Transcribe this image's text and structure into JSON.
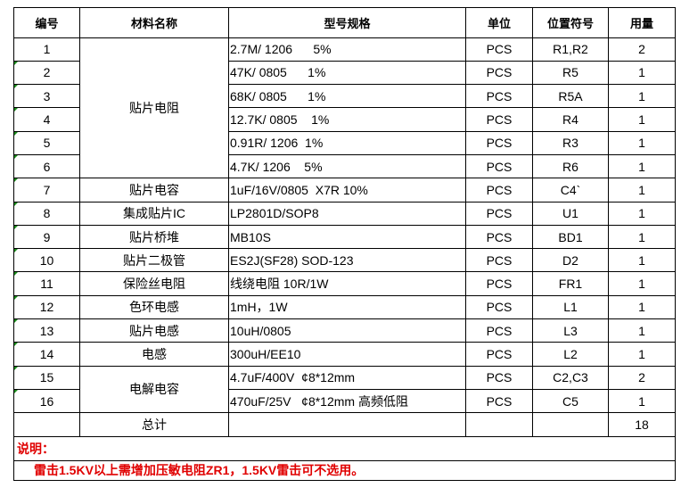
{
  "headers": [
    "编号",
    "材料名称",
    "型号规格",
    "单位",
    "位置符号",
    "用量"
  ],
  "rows": [
    {
      "no": "1",
      "spec": "2.7M/ 1206      5%",
      "unit": "PCS",
      "ref": "R1,R2",
      "qty": "2"
    },
    {
      "no": "2",
      "spec": "47K/ 0805      1%",
      "unit": "PCS",
      "ref": "R5",
      "qty": "1"
    },
    {
      "no": "3",
      "spec": "68K/ 0805      1%",
      "unit": "PCS",
      "ref": "R5A",
      "qty": "1"
    },
    {
      "no": "4",
      "spec": "12.7K/ 0805    1%",
      "unit": "PCS",
      "ref": "R4",
      "qty": "1"
    },
    {
      "no": "5",
      "spec": "0.91R/ 1206  1%",
      "unit": "PCS",
      "ref": "R3",
      "qty": "1"
    },
    {
      "no": "6",
      "spec": "4.7K/ 1206    5%",
      "unit": "PCS",
      "ref": "R6",
      "qty": "1"
    },
    {
      "no": "7",
      "spec": "1uF/16V/0805  X7R 10%",
      "unit": "PCS",
      "ref": "C4`",
      "qty": "1"
    },
    {
      "no": "8",
      "spec": "LP2801D/SOP8",
      "unit": "PCS",
      "ref": "U1",
      "qty": "1"
    },
    {
      "no": "9",
      "spec": "MB10S",
      "unit": "PCS",
      "ref": "BD1",
      "qty": "1"
    },
    {
      "no": "10",
      "spec": "ES2J(SF28) SOD-123",
      "unit": "PCS",
      "ref": "D2",
      "qty": "1"
    },
    {
      "no": "11",
      "spec": "线绕电阻 10R/1W",
      "unit": "PCS",
      "ref": "FR1",
      "qty": "1"
    },
    {
      "no": "12",
      "spec": "1mH，1W",
      "unit": "PCS",
      "ref": "L1",
      "qty": "1"
    },
    {
      "no": "13",
      "spec": "10uH/0805",
      "unit": "PCS",
      "ref": "L3",
      "qty": "1"
    },
    {
      "no": "14",
      "spec": "300uH/EE10",
      "unit": "PCS",
      "ref": "L2",
      "qty": "1"
    },
    {
      "no": "15",
      "spec": "4.7uF/400V  ¢8*12mm",
      "unit": "PCS",
      "ref": "C2,C3",
      "qty": "2"
    },
    {
      "no": "16",
      "spec": "470uF/25V   ¢8*12mm 高频低阻",
      "unit": "PCS",
      "ref": "C5",
      "qty": "1"
    }
  ],
  "names": [
    {
      "start": 0,
      "span": 6,
      "label": "贴片电阻"
    },
    {
      "start": 6,
      "span": 1,
      "label": "贴片电容"
    },
    {
      "start": 7,
      "span": 1,
      "label": "集成贴片IC"
    },
    {
      "start": 8,
      "span": 1,
      "label": "贴片桥堆"
    },
    {
      "start": 9,
      "span": 1,
      "label": "贴片二极管"
    },
    {
      "start": 10,
      "span": 1,
      "label": "保险丝电阻"
    },
    {
      "start": 11,
      "span": 1,
      "label": "色环电感"
    },
    {
      "start": 12,
      "span": 1,
      "label": "贴片电感"
    },
    {
      "start": 13,
      "span": 1,
      "label": "电感"
    },
    {
      "start": 14,
      "span": 2,
      "label": "电解电容"
    }
  ],
  "total": {
    "label": "总计",
    "qty": "18"
  },
  "notes": {
    "title": "说明：",
    "text": "雷击1.5KV以上需增加压敏电阻ZR1，1.5KV雷击可不选用。"
  },
  "colors": {
    "note": "#e00000",
    "text_indicator": "#1a8a1a"
  }
}
